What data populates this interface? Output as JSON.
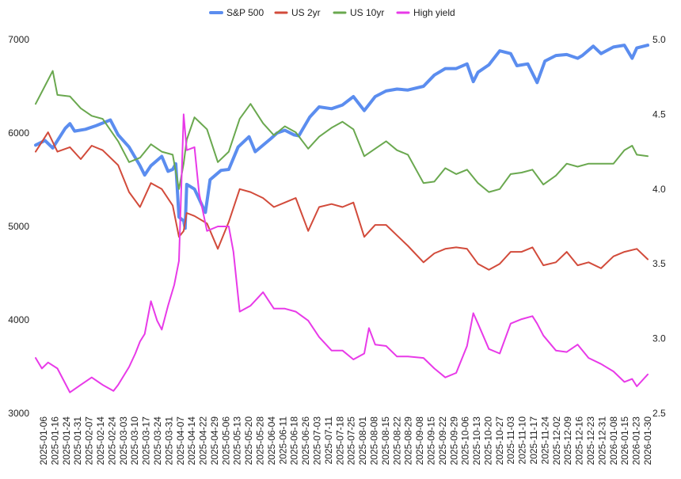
{
  "chart_data": {
    "type": "line",
    "title": "",
    "legend_position": "top-center",
    "grid": false,
    "x_start": "2025-01-02",
    "x_end": "2026-01-30",
    "x_tick_labels": [
      "2025-01-06",
      "2025-01-16",
      "2025-01-24",
      "2025-01-31",
      "2025-02-07",
      "2025-02-14",
      "2025-02-24",
      "2025-03-03",
      "2025-03-10",
      "2025-03-17",
      "2025-03-24",
      "2025-03-31",
      "2025-04-07",
      "2025-04-14",
      "2025-04-22",
      "2025-04-29",
      "2025-05-06",
      "2025-05-13",
      "2025-05-20",
      "2025-05-28",
      "2025-06-04",
      "2025-06-11",
      "2025-06-18",
      "2025-06-26",
      "2025-07-03",
      "2025-07-11",
      "2025-07-18",
      "2025-07-25",
      "2025-08-01",
      "2025-08-08",
      "2025-08-15",
      "2025-08-22",
      "2025-08-29",
      "2025-09-08",
      "2025-09-15",
      "2025-09-22",
      "2025-09-29",
      "2025-10-06",
      "2025-10-13",
      "2025-10-20",
      "2025-10-27",
      "2025-11-03",
      "2025-11-10",
      "2025-11-17",
      "2025-11-24",
      "2025-12-02",
      "2025-12-09",
      "2025-12-16",
      "2025-12-23",
      "2025-12-31",
      "2026-01-08",
      "2026-01-15",
      "2026-01-23",
      "2026-01-30"
    ],
    "y_left": {
      "min": 3000,
      "max": 7000,
      "ticks": [
        "3000",
        "4000",
        "5000",
        "6000",
        "7000"
      ]
    },
    "y_right": {
      "min": 2.5,
      "max": 5.0,
      "ticks": [
        "2.5",
        "3.0",
        "3.5",
        "4.0",
        "4.5",
        "5.0"
      ]
    },
    "series": [
      {
        "name": "S&P 500",
        "axis": "left",
        "color": "#5b8def",
        "stroke_width": 4,
        "points": [
          [
            "2025-01-02",
            5870
          ],
          [
            "2025-01-08",
            5920
          ],
          [
            "2025-01-13",
            5840
          ],
          [
            "2025-01-21",
            6050
          ],
          [
            "2025-01-24",
            6100
          ],
          [
            "2025-01-27",
            6020
          ],
          [
            "2025-02-03",
            6040
          ],
          [
            "2025-02-10",
            6080
          ],
          [
            "2025-02-19",
            6140
          ],
          [
            "2025-02-24",
            5980
          ],
          [
            "2025-03-03",
            5850
          ],
          [
            "2025-03-10",
            5650
          ],
          [
            "2025-03-13",
            5550
          ],
          [
            "2025-03-17",
            5650
          ],
          [
            "2025-03-24",
            5750
          ],
          [
            "2025-03-28",
            5590
          ],
          [
            "2025-03-31",
            5610
          ],
          [
            "2025-04-02",
            5670
          ],
          [
            "2025-04-04",
            5100
          ],
          [
            "2025-04-07",
            5060
          ],
          [
            "2025-04-08",
            4980
          ],
          [
            "2025-04-09",
            5450
          ],
          [
            "2025-04-14",
            5400
          ],
          [
            "2025-04-21",
            5150
          ],
          [
            "2025-04-24",
            5500
          ],
          [
            "2025-05-01",
            5600
          ],
          [
            "2025-05-06",
            5610
          ],
          [
            "2025-05-12",
            5850
          ],
          [
            "2025-05-19",
            5960
          ],
          [
            "2025-05-23",
            5800
          ],
          [
            "2025-06-02",
            5940
          ],
          [
            "2025-06-06",
            6000
          ],
          [
            "2025-06-11",
            6030
          ],
          [
            "2025-06-17",
            5980
          ],
          [
            "2025-06-20",
            5970
          ],
          [
            "2025-06-27",
            6170
          ],
          [
            "2025-07-03",
            6280
          ],
          [
            "2025-07-11",
            6260
          ],
          [
            "2025-07-18",
            6300
          ],
          [
            "2025-07-25",
            6390
          ],
          [
            "2025-08-01",
            6240
          ],
          [
            "2025-08-08",
            6390
          ],
          [
            "2025-08-15",
            6450
          ],
          [
            "2025-08-22",
            6470
          ],
          [
            "2025-08-29",
            6460
          ],
          [
            "2025-09-08",
            6500
          ],
          [
            "2025-09-15",
            6620
          ],
          [
            "2025-09-22",
            6690
          ],
          [
            "2025-09-29",
            6690
          ],
          [
            "2025-10-06",
            6740
          ],
          [
            "2025-10-10",
            6550
          ],
          [
            "2025-10-13",
            6650
          ],
          [
            "2025-10-20",
            6730
          ],
          [
            "2025-10-27",
            6880
          ],
          [
            "2025-11-03",
            6850
          ],
          [
            "2025-11-07",
            6720
          ],
          [
            "2025-11-14",
            6740
          ],
          [
            "2025-11-20",
            6540
          ],
          [
            "2025-11-25",
            6770
          ],
          [
            "2025-12-02",
            6830
          ],
          [
            "2025-12-09",
            6840
          ],
          [
            "2025-12-16",
            6800
          ],
          [
            "2025-12-19",
            6830
          ],
          [
            "2025-12-26",
            6930
          ],
          [
            "2025-12-31",
            6850
          ],
          [
            "2026-01-08",
            6920
          ],
          [
            "2026-01-15",
            6940
          ],
          [
            "2026-01-20",
            6800
          ],
          [
            "2026-01-23",
            6910
          ],
          [
            "2026-01-30",
            6940
          ]
        ]
      },
      {
        "name": "US 2yr",
        "axis": "right",
        "color": "#d24b3b",
        "stroke_width": 2,
        "points": [
          [
            "2025-01-02",
            4.25
          ],
          [
            "2025-01-10",
            4.38
          ],
          [
            "2025-01-16",
            4.25
          ],
          [
            "2025-01-24",
            4.28
          ],
          [
            "2025-01-31",
            4.2
          ],
          [
            "2025-02-07",
            4.29
          ],
          [
            "2025-02-14",
            4.26
          ],
          [
            "2025-02-24",
            4.16
          ],
          [
            "2025-03-03",
            3.98
          ],
          [
            "2025-03-10",
            3.88
          ],
          [
            "2025-03-17",
            4.04
          ],
          [
            "2025-03-24",
            4.0
          ],
          [
            "2025-03-31",
            3.89
          ],
          [
            "2025-04-04",
            3.68
          ],
          [
            "2025-04-07",
            3.72
          ],
          [
            "2025-04-09",
            3.84
          ],
          [
            "2025-04-14",
            3.82
          ],
          [
            "2025-04-22",
            3.77
          ],
          [
            "2025-04-29",
            3.6
          ],
          [
            "2025-05-06",
            3.78
          ],
          [
            "2025-05-13",
            4.0
          ],
          [
            "2025-05-20",
            3.98
          ],
          [
            "2025-05-28",
            3.94
          ],
          [
            "2025-06-04",
            3.88
          ],
          [
            "2025-06-11",
            3.91
          ],
          [
            "2025-06-18",
            3.94
          ],
          [
            "2025-06-26",
            3.72
          ],
          [
            "2025-07-03",
            3.88
          ],
          [
            "2025-07-11",
            3.9
          ],
          [
            "2025-07-18",
            3.88
          ],
          [
            "2025-07-25",
            3.91
          ],
          [
            "2025-08-01",
            3.68
          ],
          [
            "2025-08-08",
            3.76
          ],
          [
            "2025-08-15",
            3.76
          ],
          [
            "2025-08-22",
            3.69
          ],
          [
            "2025-08-29",
            3.62
          ],
          [
            "2025-09-08",
            3.51
          ],
          [
            "2025-09-15",
            3.57
          ],
          [
            "2025-09-22",
            3.6
          ],
          [
            "2025-09-29",
            3.61
          ],
          [
            "2025-10-06",
            3.6
          ],
          [
            "2025-10-13",
            3.5
          ],
          [
            "2025-10-20",
            3.46
          ],
          [
            "2025-10-27",
            3.5
          ],
          [
            "2025-11-03",
            3.58
          ],
          [
            "2025-11-10",
            3.58
          ],
          [
            "2025-11-17",
            3.61
          ],
          [
            "2025-11-24",
            3.49
          ],
          [
            "2025-12-02",
            3.51
          ],
          [
            "2025-12-09",
            3.58
          ],
          [
            "2025-12-16",
            3.49
          ],
          [
            "2025-12-23",
            3.51
          ],
          [
            "2025-12-31",
            3.47
          ],
          [
            "2026-01-08",
            3.55
          ],
          [
            "2026-01-15",
            3.58
          ],
          [
            "2026-01-23",
            3.6
          ],
          [
            "2026-01-30",
            3.53
          ]
        ]
      },
      {
        "name": "US 10yr",
        "axis": "right",
        "color": "#6aa84f",
        "stroke_width": 2,
        "points": [
          [
            "2025-01-02",
            4.57
          ],
          [
            "2025-01-08",
            4.69
          ],
          [
            "2025-01-13",
            4.79
          ],
          [
            "2025-01-16",
            4.63
          ],
          [
            "2025-01-24",
            4.62
          ],
          [
            "2025-01-31",
            4.54
          ],
          [
            "2025-02-07",
            4.49
          ],
          [
            "2025-02-14",
            4.47
          ],
          [
            "2025-02-24",
            4.32
          ],
          [
            "2025-03-03",
            4.18
          ],
          [
            "2025-03-10",
            4.21
          ],
          [
            "2025-03-17",
            4.3
          ],
          [
            "2025-03-24",
            4.25
          ],
          [
            "2025-03-31",
            4.23
          ],
          [
            "2025-04-04",
            4.0
          ],
          [
            "2025-04-07",
            4.17
          ],
          [
            "2025-04-09",
            4.33
          ],
          [
            "2025-04-14",
            4.48
          ],
          [
            "2025-04-22",
            4.4
          ],
          [
            "2025-04-29",
            4.18
          ],
          [
            "2025-05-06",
            4.25
          ],
          [
            "2025-05-13",
            4.47
          ],
          [
            "2025-05-20",
            4.57
          ],
          [
            "2025-05-28",
            4.44
          ],
          [
            "2025-06-04",
            4.36
          ],
          [
            "2025-06-11",
            4.42
          ],
          [
            "2025-06-18",
            4.38
          ],
          [
            "2025-06-26",
            4.27
          ],
          [
            "2025-07-03",
            4.35
          ],
          [
            "2025-07-11",
            4.41
          ],
          [
            "2025-07-18",
            4.45
          ],
          [
            "2025-07-25",
            4.4
          ],
          [
            "2025-08-01",
            4.22
          ],
          [
            "2025-08-08",
            4.27
          ],
          [
            "2025-08-15",
            4.32
          ],
          [
            "2025-08-22",
            4.26
          ],
          [
            "2025-08-29",
            4.23
          ],
          [
            "2025-09-08",
            4.04
          ],
          [
            "2025-09-15",
            4.05
          ],
          [
            "2025-09-22",
            4.14
          ],
          [
            "2025-09-29",
            4.1
          ],
          [
            "2025-10-06",
            4.13
          ],
          [
            "2025-10-13",
            4.04
          ],
          [
            "2025-10-20",
            3.98
          ],
          [
            "2025-10-27",
            4.0
          ],
          [
            "2025-11-03",
            4.1
          ],
          [
            "2025-11-10",
            4.11
          ],
          [
            "2025-11-17",
            4.13
          ],
          [
            "2025-11-24",
            4.03
          ],
          [
            "2025-12-02",
            4.09
          ],
          [
            "2025-12-09",
            4.17
          ],
          [
            "2025-12-16",
            4.15
          ],
          [
            "2025-12-23",
            4.17
          ],
          [
            "2025-12-31",
            4.17
          ],
          [
            "2026-01-08",
            4.17
          ],
          [
            "2026-01-15",
            4.26
          ],
          [
            "2026-01-20",
            4.29
          ],
          [
            "2026-01-23",
            4.23
          ],
          [
            "2026-01-30",
            4.22
          ]
        ]
      },
      {
        "name": "High yield",
        "axis": "right",
        "color": "#e83ae8",
        "stroke_width": 2,
        "points": [
          [
            "2025-01-02",
            2.87
          ],
          [
            "2025-01-06",
            2.8
          ],
          [
            "2025-01-10",
            2.84
          ],
          [
            "2025-01-16",
            2.8
          ],
          [
            "2025-01-24",
            2.64
          ],
          [
            "2025-01-31",
            2.69
          ],
          [
            "2025-02-07",
            2.74
          ],
          [
            "2025-02-14",
            2.69
          ],
          [
            "2025-02-21",
            2.65
          ],
          [
            "2025-02-24",
            2.69
          ],
          [
            "2025-03-03",
            2.81
          ],
          [
            "2025-03-07",
            2.9
          ],
          [
            "2025-03-10",
            2.98
          ],
          [
            "2025-03-13",
            3.03
          ],
          [
            "2025-03-17",
            3.25
          ],
          [
            "2025-03-21",
            3.12
          ],
          [
            "2025-03-24",
            3.06
          ],
          [
            "2025-03-28",
            3.22
          ],
          [
            "2025-04-01",
            3.36
          ],
          [
            "2025-04-04",
            3.52
          ],
          [
            "2025-04-07",
            4.5
          ],
          [
            "2025-04-09",
            4.26
          ],
          [
            "2025-04-14",
            4.28
          ],
          [
            "2025-04-17",
            3.97
          ],
          [
            "2025-04-22",
            3.72
          ],
          [
            "2025-04-29",
            3.75
          ],
          [
            "2025-05-06",
            3.75
          ],
          [
            "2025-05-09",
            3.58
          ],
          [
            "2025-05-13",
            3.18
          ],
          [
            "2025-05-20",
            3.22
          ],
          [
            "2025-05-28",
            3.31
          ],
          [
            "2025-06-04",
            3.2
          ],
          [
            "2025-06-11",
            3.2
          ],
          [
            "2025-06-18",
            3.18
          ],
          [
            "2025-06-26",
            3.12
          ],
          [
            "2025-07-03",
            3.01
          ],
          [
            "2025-07-11",
            2.92
          ],
          [
            "2025-07-18",
            2.92
          ],
          [
            "2025-07-25",
            2.86
          ],
          [
            "2025-08-01",
            2.9
          ],
          [
            "2025-08-04",
            3.07
          ],
          [
            "2025-08-08",
            2.96
          ],
          [
            "2025-08-15",
            2.95
          ],
          [
            "2025-08-22",
            2.88
          ],
          [
            "2025-08-29",
            2.88
          ],
          [
            "2025-09-08",
            2.87
          ],
          [
            "2025-09-15",
            2.8
          ],
          [
            "2025-09-22",
            2.74
          ],
          [
            "2025-09-29",
            2.77
          ],
          [
            "2025-10-06",
            2.95
          ],
          [
            "2025-10-10",
            3.17
          ],
          [
            "2025-10-13",
            3.1
          ],
          [
            "2025-10-20",
            2.93
          ],
          [
            "2025-10-27",
            2.9
          ],
          [
            "2025-11-03",
            3.1
          ],
          [
            "2025-11-10",
            3.13
          ],
          [
            "2025-11-17",
            3.15
          ],
          [
            "2025-11-20",
            3.1
          ],
          [
            "2025-11-24",
            3.02
          ],
          [
            "2025-12-02",
            2.92
          ],
          [
            "2025-12-09",
            2.91
          ],
          [
            "2025-12-16",
            2.96
          ],
          [
            "2025-12-23",
            2.87
          ],
          [
            "2025-12-31",
            2.83
          ],
          [
            "2026-01-08",
            2.78
          ],
          [
            "2026-01-15",
            2.71
          ],
          [
            "2026-01-20",
            2.73
          ],
          [
            "2026-01-23",
            2.68
          ],
          [
            "2026-01-30",
            2.76
          ]
        ]
      }
    ]
  }
}
